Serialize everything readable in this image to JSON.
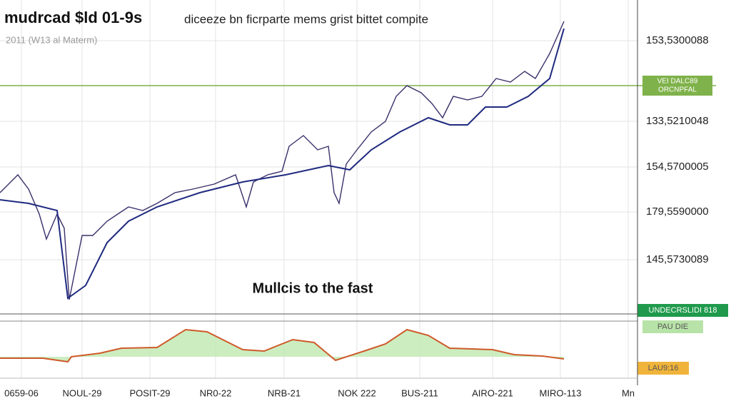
{
  "chart_data": [
    {
      "type": "line",
      "title": "mudrcad $ld 01-9s",
      "headline": "diceeze bn ficrparte mems grist bittet compite",
      "subtitle": "2011 (W13 al Materm)",
      "annotation": "Mullcis to the fast",
      "xlim": [
        0,
        893
      ],
      "xticks": [
        {
          "value": 30,
          "label": "0659-06"
        },
        {
          "value": 115,
          "label": "NOUL-29"
        },
        {
          "value": 210,
          "label": "POSIT-29"
        },
        {
          "value": 302,
          "label": "NR0-22"
        },
        {
          "value": 398,
          "label": "NRB-21"
        },
        {
          "value": 500,
          "label": "NOK 222"
        },
        {
          "value": 588,
          "label": "BUS-211"
        },
        {
          "value": 690,
          "label": "AIRO-221"
        },
        {
          "value": 785,
          "label": "MIRO-113"
        },
        {
          "value": 880,
          "label": "Mn"
        }
      ],
      "ylim": [
        0,
        440
      ],
      "yticks": [
        {
          "value": 383,
          "label": "153,5300088"
        },
        {
          "value": 270,
          "label": "133,5210048"
        },
        {
          "value": 206,
          "label": "154,5700005"
        },
        {
          "value": 143,
          "label": "179,5590000"
        },
        {
          "value": 76,
          "label": "145,5730089"
        }
      ],
      "grid": true,
      "level": {
        "value": 320,
        "label": "VEI DALC89",
        "sublabel": "ORCNPFAL",
        "color": "#7fb24a"
      },
      "series": [
        {
          "color": "#3b2f6a",
          "x": [
            0,
            25,
            40,
            55,
            65,
            80,
            90,
            97,
            105,
            115,
            130,
            150,
            165,
            180,
            200,
            220,
            245,
            270,
            300,
            330,
            345,
            355,
            375,
            395,
            405,
            425,
            445,
            460,
            468,
            475,
            485,
            500,
            520,
            540,
            555,
            570,
            590,
            605,
            620,
            635,
            655,
            675,
            695,
            715,
            735,
            750,
            770,
            790
          ],
          "values": [
            170,
            195,
            175,
            140,
            105,
            140,
            120,
            20,
            60,
            110,
            110,
            130,
            140,
            150,
            145,
            155,
            170,
            175,
            182,
            195,
            150,
            185,
            195,
            200,
            235,
            250,
            230,
            235,
            170,
            155,
            210,
            230,
            255,
            270,
            305,
            320,
            310,
            295,
            275,
            305,
            300,
            305,
            330,
            325,
            340,
            330,
            365,
            410
          ]
        },
        {
          "color": "#1f2a80",
          "x": [
            0,
            40,
            80,
            95,
            120,
            150,
            180,
            220,
            280,
            340,
            400,
            460,
            490,
            520,
            560,
            600,
            630,
            655,
            680,
            710,
            740,
            770,
            790
          ],
          "values": [
            160,
            155,
            145,
            22,
            40,
            100,
            130,
            150,
            170,
            185,
            195,
            208,
            202,
            230,
            255,
            275,
            265,
            265,
            290,
            290,
            305,
            330,
            400
          ]
        }
      ]
    },
    {
      "type": "area",
      "xlim": [
        0,
        893
      ],
      "ylim": [
        -10,
        50
      ],
      "badges": [
        {
          "label": "UNDECRSLIDI 818",
          "color": "#1f9a4c"
        },
        {
          "label": "PAU DIE",
          "color": "#b8e3a8"
        },
        {
          "label": "LAU9:16",
          "color": "#f0b43a"
        }
      ],
      "series": [
        {
          "color": "#cf5a2a",
          "fill": "#bfe8b0",
          "x": [
            0,
            60,
            95,
            100,
            140,
            170,
            220,
            260,
            290,
            340,
            370,
            410,
            440,
            470,
            510,
            540,
            570,
            600,
            630,
            690,
            720,
            760,
            790
          ],
          "values": [
            -2,
            -2,
            -7,
            0,
            5,
            12,
            13,
            38,
            35,
            10,
            8,
            24,
            20,
            -5,
            8,
            18,
            38,
            30,
            12,
            10,
            3,
            1,
            -3
          ]
        }
      ]
    }
  ]
}
